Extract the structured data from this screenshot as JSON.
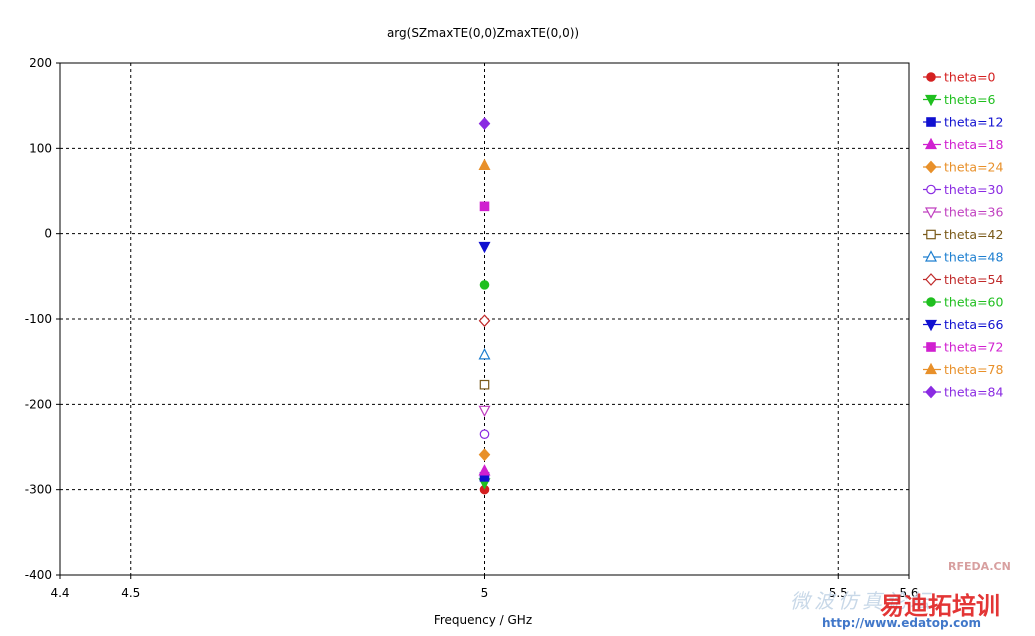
{
  "chart_data": {
    "type": "scatter",
    "title": "arg(SZmaxTE(0,0)ZmaxTE(0,0))",
    "xlabel": "Frequency / GHz",
    "ylabel": "",
    "xlim": [
      4.4,
      5.6
    ],
    "ylim": [
      -400,
      200
    ],
    "xticks": [
      4.4,
      4.5,
      5,
      5.5,
      5.6
    ],
    "xtick_labels": [
      "4.4",
      "4.5",
      "5",
      "5.5",
      "5.6"
    ],
    "yticks": [
      200,
      100,
      0,
      -100,
      -200,
      -300,
      -400
    ],
    "ytick_labels": [
      "200",
      "100",
      "0",
      "-100",
      "-200",
      "-300",
      "-400"
    ],
    "grid_x": [
      4.5,
      5,
      5.5
    ],
    "grid_y": [
      100,
      0,
      -100,
      -200,
      -300
    ],
    "grid": true,
    "legend_position": "right",
    "series": [
      {
        "name": "theta=0",
        "x": [
          5
        ],
        "y": [
          -300
        ],
        "color": "#d42020",
        "marker": "circle-filled"
      },
      {
        "name": "theta=6",
        "x": [
          5
        ],
        "y": [
          -292
        ],
        "color": "#1fbf1f",
        "marker": "triangle-down-filled"
      },
      {
        "name": "theta=12",
        "x": [
          5
        ],
        "y": [
          -285
        ],
        "color": "#1010d0",
        "marker": "square-filled"
      },
      {
        "name": "theta=18",
        "x": [
          5
        ],
        "y": [
          -278
        ],
        "color": "#d020d0",
        "marker": "triangle-up-filled"
      },
      {
        "name": "theta=24",
        "x": [
          5
        ],
        "y": [
          -259
        ],
        "color": "#e8902a",
        "marker": "diamond-filled"
      },
      {
        "name": "theta=30",
        "x": [
          5
        ],
        "y": [
          -235
        ],
        "color": "#8a2be2",
        "marker": "circle-open"
      },
      {
        "name": "theta=36",
        "x": [
          5
        ],
        "y": [
          -207
        ],
        "color": "#c040c0",
        "marker": "triangle-down-open"
      },
      {
        "name": "theta=42",
        "x": [
          5
        ],
        "y": [
          -177
        ],
        "color": "#7a5a1a",
        "marker": "square-open"
      },
      {
        "name": "theta=48",
        "x": [
          5
        ],
        "y": [
          -142
        ],
        "color": "#1e7fd0",
        "marker": "triangle-up-open"
      },
      {
        "name": "theta=54",
        "x": [
          5
        ],
        "y": [
          -102
        ],
        "color": "#c02a2a",
        "marker": "diamond-open"
      },
      {
        "name": "theta=60",
        "x": [
          5
        ],
        "y": [
          -60
        ],
        "color": "#1fbf1f",
        "marker": "circle-filled"
      },
      {
        "name": "theta=66",
        "x": [
          5
        ],
        "y": [
          -15
        ],
        "color": "#1010d0",
        "marker": "triangle-down-filled"
      },
      {
        "name": "theta=72",
        "x": [
          5
        ],
        "y": [
          32
        ],
        "color": "#d020d0",
        "marker": "square-filled"
      },
      {
        "name": "theta=78",
        "x": [
          5
        ],
        "y": [
          80
        ],
        "color": "#e8902a",
        "marker": "triangle-up-filled"
      },
      {
        "name": "theta=84",
        "x": [
          5
        ],
        "y": [
          129
        ],
        "color": "#8a2be2",
        "marker": "diamond-filled"
      }
    ]
  },
  "watermark": {
    "line1": "RFEDA.CN",
    "line2": "易迪拓培训",
    "line3": "http://www.edatop.com",
    "line4": "微波仿真论坛"
  }
}
